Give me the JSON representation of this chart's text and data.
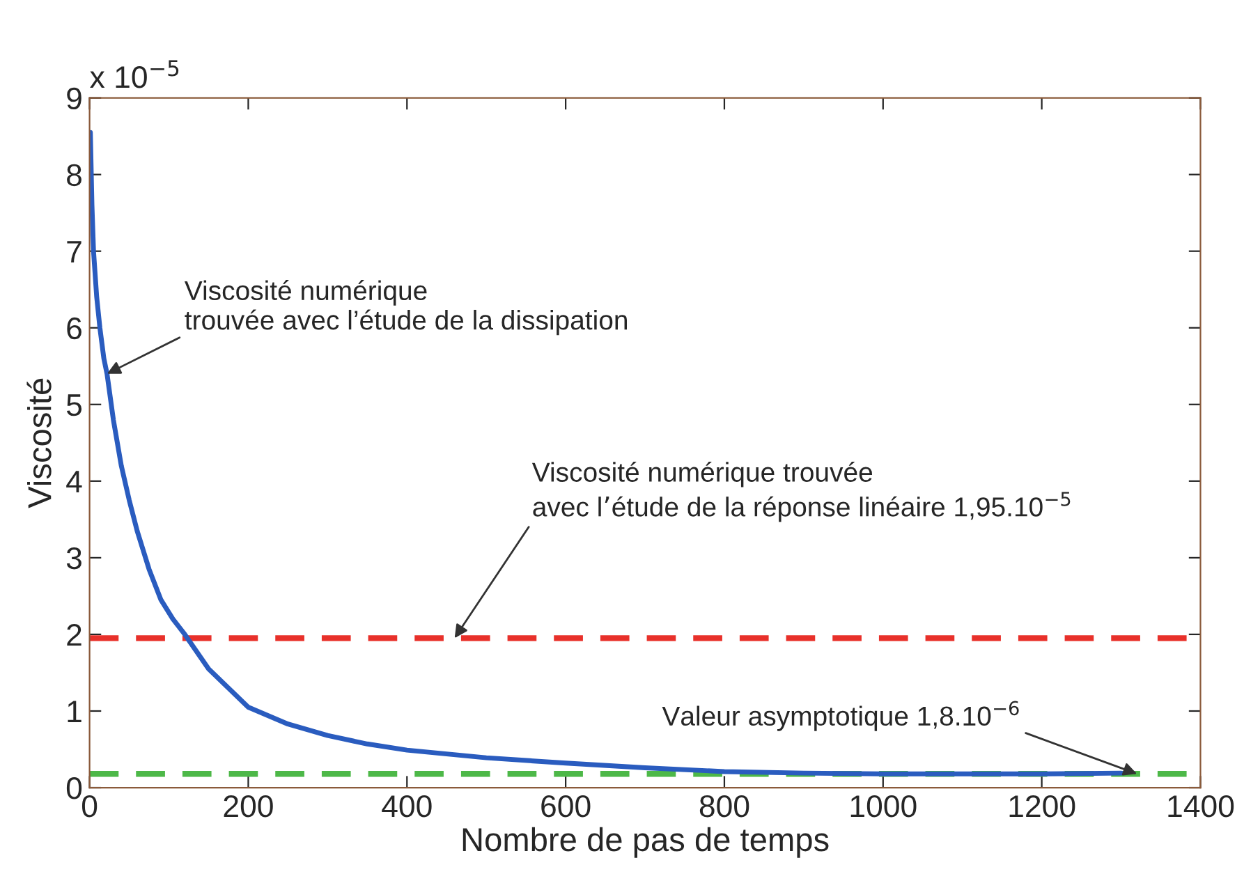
{
  "chart_data": {
    "type": "line",
    "xlabel": "Nombre de pas de temps",
    "ylabel": "Viscosité",
    "x": [
      1,
      3,
      5,
      9,
      13,
      18,
      22,
      30,
      40,
      50,
      60,
      75,
      90,
      105,
      120,
      150,
      200,
      250,
      300,
      350,
      400,
      500,
      600,
      700,
      800,
      900,
      1000,
      1100,
      1200,
      1300
    ],
    "series": [
      {
        "color": "#2a5cbf",
        "values": [
          8.55,
          7.6,
          7.0,
          6.4,
          6.0,
          5.6,
          5.4,
          4.8,
          4.2,
          3.75,
          3.35,
          2.85,
          2.45,
          2.2,
          2.0,
          1.55,
          1.05,
          0.83,
          0.68,
          0.57,
          0.49,
          0.39,
          0.32,
          0.26,
          0.21,
          0.19,
          0.18,
          0.18,
          0.18,
          0.19
        ]
      }
    ],
    "xlim": [
      0,
      1400
    ],
    "xticks": [
      0,
      200,
      400,
      600,
      800,
      1000,
      1200,
      1400
    ],
    "ylim": [
      0,
      9
    ],
    "yticks": [
      0,
      1,
      2,
      3,
      4,
      5,
      6,
      7,
      8,
      9
    ],
    "ref_lines": [
      {
        "axis": "y",
        "value": 1.95,
        "color": "#e8302a",
        "line_style": "dashed"
      },
      {
        "axis": "y",
        "value": 0.18,
        "color": "#4db848",
        "line_style": "dashed"
      }
    ],
    "annotations": [
      "x 10$^{−5}$",
      {
        "text": "Viscosité numérique\ntrouvée avec l’étude de la dissipation",
        "x": 22,
        "y": 5.4
      },
      {
        "text": "Viscosité numérique trouvée\navec l’étude de la réponse linéaire 1,95.10$^{−5}$",
        "x": 460,
        "y": 1.95
      },
      {
        "text": "Valeur asymptotique 1,8.10$^{−6}$",
        "x": 1320,
        "y": 0.18
      }
    ],
    "grid": false,
    "legend": false,
    "marker": "none",
    "line_style": "solid"
  }
}
